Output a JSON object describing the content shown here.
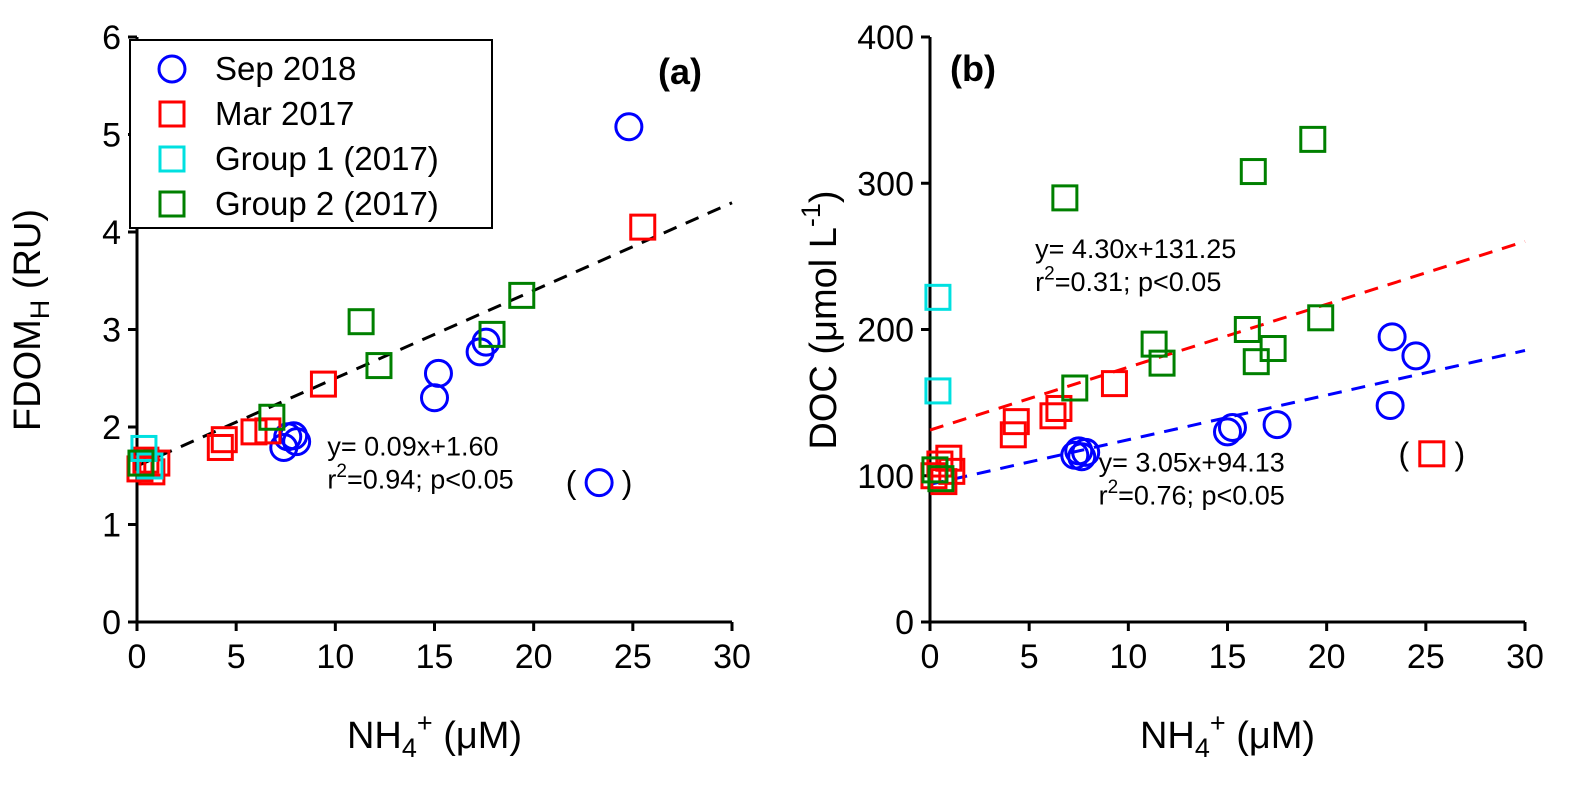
{
  "colors": {
    "blue": "#0000ff",
    "red": "#ff0000",
    "cyan": "#00e0e0",
    "green": "#008000",
    "axis": "#000000"
  },
  "chart_data": [
    {
      "type": "scatter",
      "panel_label": "(a)",
      "xlabel_rich": [
        {
          "t": "NH"
        },
        {
          "t": "4",
          "sub": true
        },
        {
          "t": "+",
          "sup": true
        },
        {
          "t": " (μM)"
        }
      ],
      "ylabel_rich": [
        {
          "t": "FDOM"
        },
        {
          "t": "H",
          "sub": true
        },
        {
          "t": " (RU)"
        }
      ],
      "xlim": [
        0,
        30
      ],
      "ylim": [
        0,
        6
      ],
      "xticks": [
        "0",
        "5",
        "10",
        "15",
        "20",
        "25",
        "30"
      ],
      "yticks": [
        "0",
        "1",
        "2",
        "3",
        "4",
        "5",
        "6"
      ],
      "legend": {
        "visible": true
      },
      "series": [
        {
          "name": "Sep 2018",
          "marker": "circle",
          "color": "#0000ff",
          "points": [
            [
              7.4,
              1.79
            ],
            [
              7.6,
              1.9
            ],
            [
              7.9,
              1.91
            ],
            [
              8.05,
              1.85
            ],
            [
              15.0,
              2.3
            ],
            [
              15.2,
              2.55
            ],
            [
              17.3,
              2.77
            ],
            [
              17.6,
              2.87
            ],
            [
              24.8,
              5.08
            ]
          ],
          "paren_points": [
            [
              23.3,
              1.43
            ]
          ]
        },
        {
          "name": "Mar 2017",
          "marker": "square",
          "color": "#ff0000",
          "points": [
            [
              0.15,
              1.57
            ],
            [
              0.45,
              1.66
            ],
            [
              0.75,
              1.54
            ],
            [
              1.0,
              1.63
            ],
            [
              4.2,
              1.79
            ],
            [
              4.4,
              1.87
            ],
            [
              5.9,
              1.95
            ],
            [
              6.6,
              1.96
            ],
            [
              9.4,
              2.44
            ],
            [
              25.5,
              4.05
            ]
          ]
        },
        {
          "name": "Group 1 (2017)",
          "marker": "square",
          "color": "#00e0e0",
          "points": [
            [
              0.35,
              1.78
            ],
            [
              0.65,
              1.6
            ]
          ]
        },
        {
          "name": "Group 2 (2017)",
          "marker": "square",
          "color": "#008000",
          "points": [
            [
              0.2,
              1.63
            ],
            [
              6.8,
              2.1
            ],
            [
              11.3,
              3.08
            ],
            [
              12.2,
              2.63
            ],
            [
              17.9,
              2.95
            ],
            [
              19.4,
              3.35
            ]
          ]
        }
      ],
      "trend_lines": [
        {
          "slope": 0.09,
          "intercept": 1.6,
          "x_range": [
            0,
            30
          ],
          "color": "#000000"
        }
      ],
      "annotations": [
        {
          "x": 9.6,
          "y": 1.71,
          "color": "#000000",
          "lines": [
            [
              {
                "t": "y= 0.09x+1.60"
              }
            ],
            [
              {
                "t": "r"
              },
              {
                "t": "2",
                "sup": true
              },
              {
                "t": "=0.94; p<0.05"
              }
            ]
          ]
        }
      ]
    },
    {
      "type": "scatter",
      "panel_label": "(b)",
      "xlabel_rich": [
        {
          "t": "NH"
        },
        {
          "t": "4",
          "sub": true
        },
        {
          "t": "+",
          "sup": true
        },
        {
          "t": " (μM)"
        }
      ],
      "ylabel_rich": [
        {
          "t": "DOC ("
        },
        {
          "t": "μ"
        },
        {
          "t": "mol L"
        },
        {
          "t": "-1",
          "sup": true
        },
        {
          "t": ")"
        }
      ],
      "xlim": [
        0,
        30
      ],
      "ylim": [
        0,
        400
      ],
      "xticks": [
        "0",
        "5",
        "10",
        "15",
        "20",
        "25",
        "30"
      ],
      "yticks": [
        "0",
        "100",
        "200",
        "300",
        "400"
      ],
      "legend": {
        "visible": false
      },
      "series": [
        {
          "name": "Sep 2018",
          "marker": "circle",
          "color": "#0000ff",
          "points": [
            [
              7.3,
              114
            ],
            [
              7.5,
              117
            ],
            [
              7.65,
              113
            ],
            [
              7.85,
              116
            ],
            [
              15.0,
              130
            ],
            [
              15.25,
              133
            ],
            [
              17.5,
              135
            ],
            [
              23.2,
              148
            ],
            [
              23.3,
              195
            ],
            [
              24.5,
              182
            ]
          ]
        },
        {
          "name": "Mar 2017",
          "marker": "square",
          "color": "#ff0000",
          "points": [
            [
              0.2,
              100
            ],
            [
              0.5,
              108
            ],
            [
              0.7,
              96
            ],
            [
              0.95,
              112
            ],
            [
              1.1,
              103
            ],
            [
              4.2,
              128
            ],
            [
              4.35,
              137
            ],
            [
              6.2,
              141
            ],
            [
              6.5,
              146
            ],
            [
              9.3,
              163
            ]
          ],
          "paren_points": [
            [
              25.3,
              115
            ]
          ]
        },
        {
          "name": "Group 1 (2017)",
          "marker": "square",
          "color": "#00e0e0",
          "points": [
            [
              0.4,
              222
            ],
            [
              0.4,
              158
            ]
          ]
        },
        {
          "name": "Group 2 (2017)",
          "marker": "square",
          "color": "#008000",
          "points": [
            [
              0.25,
              104
            ],
            [
              0.55,
              98
            ],
            [
              6.8,
              290
            ],
            [
              7.3,
              160
            ],
            [
              11.3,
              190
            ],
            [
              11.7,
              177
            ],
            [
              16.0,
              200
            ],
            [
              16.3,
              308
            ],
            [
              16.45,
              178
            ],
            [
              17.3,
              187
            ],
            [
              19.3,
              330
            ],
            [
              19.7,
              208
            ]
          ]
        }
      ],
      "trend_lines": [
        {
          "slope": 4.3,
          "intercept": 131.25,
          "x_range": [
            0,
            30
          ],
          "color": "#ff0000"
        },
        {
          "slope": 3.05,
          "intercept": 94.13,
          "x_range": [
            0,
            30
          ],
          "color": "#0000ff"
        }
      ],
      "annotations": [
        {
          "x": 5.3,
          "y": 249,
          "color": "#000000",
          "lines": [
            [
              {
                "t": "y= 4.30x+131.25"
              }
            ],
            [
              {
                "t": "r"
              },
              {
                "t": "2",
                "sup": true
              },
              {
                "t": "=0.31; p<0.05"
              }
            ]
          ]
        },
        {
          "x": 8.5,
          "y": 103,
          "color": "#000000",
          "lines": [
            [
              {
                "t": "y= 3.05x+94.13"
              }
            ],
            [
              {
                "t": "r"
              },
              {
                "t": "2",
                "sup": true
              },
              {
                "t": "=0.76; p<0.05"
              }
            ]
          ]
        }
      ]
    }
  ]
}
